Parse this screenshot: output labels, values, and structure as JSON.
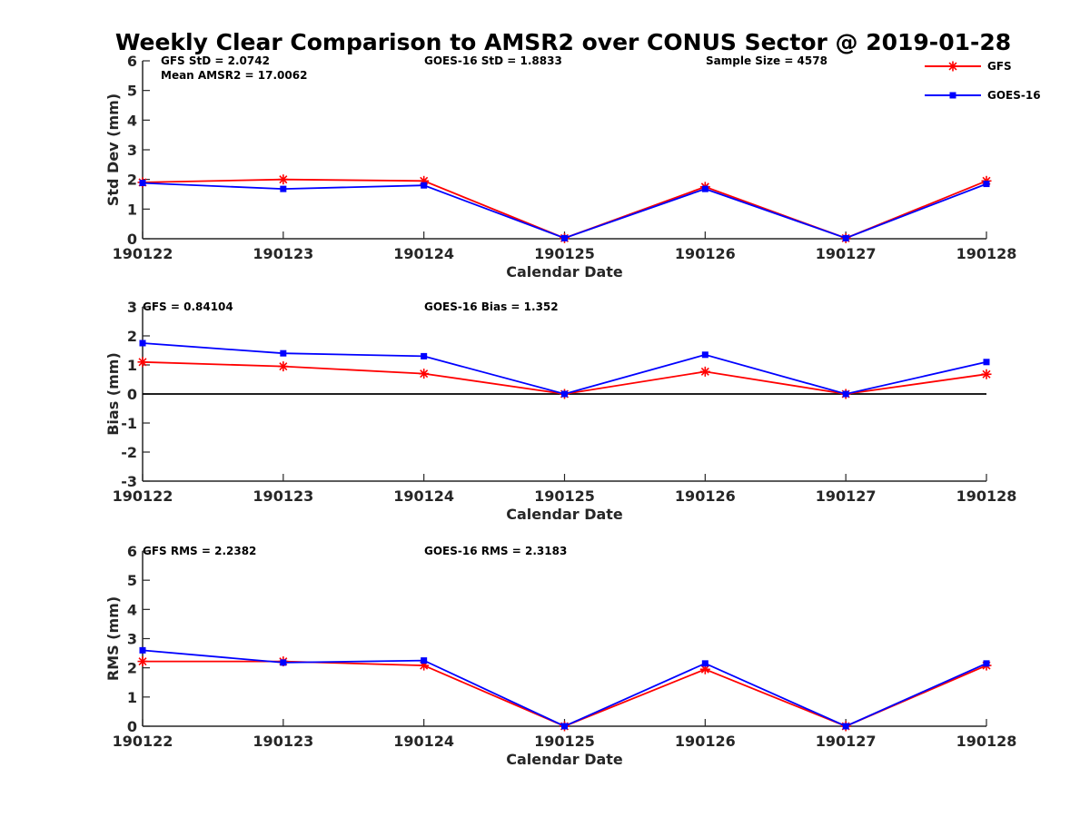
{
  "figure": {
    "title": "Weekly Clear Comparison to AMSR2 over CONUS Sector @ 2019-01-28"
  },
  "legend": {
    "placement": "top-right",
    "entries": [
      {
        "name": "GFS",
        "color": "#ff0000",
        "marker": "asterisk"
      },
      {
        "name": "GOES-16",
        "color": "#0000ff",
        "marker": "square"
      }
    ]
  },
  "chart_data": [
    {
      "type": "line",
      "xlabel": "Calendar Date",
      "ylabel": "Std Dev (mm)",
      "x": [
        "190122",
        "190123",
        "190124",
        "190125",
        "190126",
        "190127",
        "190128"
      ],
      "ylim": [
        0,
        6
      ],
      "yticks": [
        "0",
        "1",
        "2",
        "3",
        "4",
        "5",
        "6"
      ],
      "zero_line": false,
      "annotations": [
        {
          "text": "GFS StD = 2.0742"
        },
        {
          "text": "Mean AMSR2 = 17.0062"
        },
        {
          "text": "GOES-16 StD = 1.8833"
        },
        {
          "text": "Sample Size = 4578"
        }
      ],
      "series": [
        {
          "name": "GFS",
          "color": "#ff0000",
          "marker": "asterisk",
          "values": [
            1.9,
            2.0,
            1.95,
            0.02,
            1.75,
            0.02,
            1.95
          ]
        },
        {
          "name": "GOES-16",
          "color": "#0000ff",
          "marker": "square",
          "values": [
            1.88,
            1.68,
            1.8,
            0.02,
            1.68,
            0.02,
            1.85
          ]
        }
      ]
    },
    {
      "type": "line",
      "xlabel": "Calendar Date",
      "ylabel": "Bias (mm)",
      "x": [
        "190122",
        "190123",
        "190124",
        "190125",
        "190126",
        "190127",
        "190128"
      ],
      "ylim": [
        -3,
        3
      ],
      "yticks": [
        "-3",
        "-2",
        "-1",
        "0",
        "1",
        "2",
        "3"
      ],
      "zero_line": true,
      "annotations": [
        {
          "text": "GFS = 0.84104"
        },
        {
          "text": "GOES-16 Bias  = 1.352"
        }
      ],
      "series": [
        {
          "name": "GFS",
          "color": "#ff0000",
          "marker": "asterisk",
          "values": [
            1.1,
            0.95,
            0.7,
            0.0,
            0.77,
            0.0,
            0.68
          ]
        },
        {
          "name": "GOES-16",
          "color": "#0000ff",
          "marker": "square",
          "values": [
            1.75,
            1.4,
            1.3,
            0.0,
            1.35,
            0.0,
            1.1
          ]
        }
      ]
    },
    {
      "type": "line",
      "xlabel": "Calendar Date",
      "ylabel": "RMS (mm)",
      "x": [
        "190122",
        "190123",
        "190124",
        "190125",
        "190126",
        "190127",
        "190128"
      ],
      "ylim": [
        0,
        6
      ],
      "yticks": [
        "0",
        "1",
        "2",
        "3",
        "4",
        "5",
        "6"
      ],
      "zero_line": false,
      "annotations": [
        {
          "text": "GFS RMS = 2.2382"
        },
        {
          "text": "GOES-16 RMS = 2.3183"
        }
      ],
      "series": [
        {
          "name": "GFS",
          "color": "#ff0000",
          "marker": "asterisk",
          "values": [
            2.22,
            2.22,
            2.08,
            0.0,
            1.95,
            0.0,
            2.08
          ]
        },
        {
          "name": "GOES-16",
          "color": "#0000ff",
          "marker": "square",
          "values": [
            2.6,
            2.18,
            2.25,
            0.0,
            2.15,
            0.0,
            2.15
          ]
        }
      ]
    }
  ]
}
